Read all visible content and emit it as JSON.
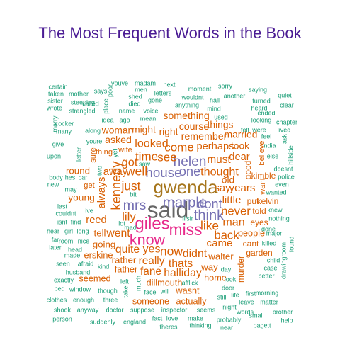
{
  "chart_data": {
    "type": "wordcloud",
    "title": "The Most Frequent Words in the Book",
    "colors": {
      "title": "#4b1c94",
      "tiers": [
        "#1b9e77",
        "#d95f02",
        "#7570b3",
        "#e7298a",
        "#a6761d",
        "#666666"
      ]
    },
    "words": [
      {
        "text": "said",
        "freq": 100
      },
      {
        "text": "gwenda",
        "freq": 72
      },
      {
        "text": "giles",
        "freq": 60
      },
      {
        "text": "miss",
        "freq": 52
      },
      {
        "text": "know",
        "freq": 45
      },
      {
        "text": "marple",
        "freq": 40
      },
      {
        "text": "think",
        "freq": 38
      },
      {
        "text": "mrs",
        "freq": 36
      },
      {
        "text": "helen",
        "freq": 33
      },
      {
        "text": "house",
        "freq": 32
      },
      {
        "text": "kennedy",
        "freq": 30
      },
      {
        "text": "one",
        "freq": 30
      },
      {
        "text": "dont",
        "freq": 29
      },
      {
        "text": "well",
        "freq": 27
      },
      {
        "text": "now",
        "freq": 27
      },
      {
        "text": "like",
        "freq": 26
      },
      {
        "text": "just",
        "freq": 26
      },
      {
        "text": "lily",
        "freq": 25
      },
      {
        "text": "see",
        "freq": 25
      },
      {
        "text": "time",
        "freq": 25
      },
      {
        "text": "come",
        "freq": 25
      },
      {
        "text": "back",
        "freq": 24
      },
      {
        "text": "never",
        "freq": 24
      },
      {
        "text": "got",
        "freq": 23
      },
      {
        "text": "looked",
        "freq": 22
      },
      {
        "text": "thought",
        "freq": 22
      },
      {
        "text": "man",
        "freq": 22
      },
      {
        "text": "yes",
        "freq": 22
      },
      {
        "text": "halliday",
        "freq": 21
      },
      {
        "text": "quite",
        "freq": 21
      },
      {
        "text": "thats",
        "freq": 21
      },
      {
        "text": "didnt",
        "freq": 21
      },
      {
        "text": "went",
        "freq": 21
      },
      {
        "text": "fane",
        "freq": 20
      },
      {
        "text": "really",
        "freq": 20
      },
      {
        "text": "must",
        "freq": 20
      },
      {
        "text": "little",
        "freq": 19
      },
      {
        "text": "years",
        "freq": 19
      },
      {
        "text": "came",
        "freq": 19
      },
      {
        "text": "perhaps",
        "freq": 18
      },
      {
        "text": "reed",
        "freq": 18
      },
      {
        "text": "always",
        "freq": 18
      },
      {
        "text": "dear",
        "freq": 18
      },
      {
        "text": "say",
        "freq": 18
      },
      {
        "text": "away",
        "freq": 18
      },
      {
        "text": "something",
        "freq": 17
      },
      {
        "text": "course",
        "freq": 17
      },
      {
        "text": "remember",
        "freq": 17
      },
      {
        "text": "asked",
        "freq": 17
      },
      {
        "text": "woman",
        "freq": 16
      },
      {
        "text": "might",
        "freq": 16
      },
      {
        "text": "right",
        "freq": 16
      },
      {
        "text": "things",
        "freq": 16
      },
      {
        "text": "married",
        "freq": 16
      },
      {
        "text": "took",
        "freq": 16
      },
      {
        "text": "old",
        "freq": 16
      },
      {
        "text": "young",
        "freq": 16
      },
      {
        "text": "round",
        "freq": 15
      },
      {
        "text": "tell",
        "freq": 15
      },
      {
        "text": "going",
        "freq": 15
      },
      {
        "text": "rather",
        "freq": 15
      },
      {
        "text": "way",
        "freq": 15
      },
      {
        "text": "walter",
        "freq": 15
      },
      {
        "text": "people",
        "freq": 14
      },
      {
        "text": "erskine",
        "freq": 14
      },
      {
        "text": "father",
        "freq": 14
      },
      {
        "text": "seemed",
        "freq": 14
      },
      {
        "text": "dillmouth",
        "freq": 14
      },
      {
        "text": "someone",
        "freq": 14
      },
      {
        "text": "actually",
        "freq": 14
      },
      {
        "text": "wasnt",
        "freq": 14
      },
      {
        "text": "home",
        "freq": 14
      },
      {
        "text": "put",
        "freq": 13
      },
      {
        "text": "kelvin",
        "freq": 13
      },
      {
        "text": "told",
        "freq": 13
      },
      {
        "text": "eyes",
        "freq": 13
      },
      {
        "text": "cant",
        "freq": 13
      },
      {
        "text": "garden",
        "freq": 13
      },
      {
        "text": "murder",
        "freq": 13
      },
      {
        "text": "kimble",
        "freq": 13
      },
      {
        "text": "good",
        "freq": 13
      },
      {
        "text": "believe",
        "freq": 12
      },
      {
        "text": "want",
        "freq": 12
      },
      {
        "text": "get",
        "freq": 12
      },
      {
        "text": "thing",
        "freq": 12
      },
      {
        "text": "wife",
        "freq": 12
      },
      {
        "text": "sure",
        "freq": 12
      },
      {
        "text": "shook",
        "freq": 11
      },
      {
        "text": "anyway",
        "freq": 11
      },
      {
        "text": "doctor",
        "freq": 11
      },
      {
        "text": "suppose",
        "freq": 11
      },
      {
        "text": "inspector",
        "freq": 11
      },
      {
        "text": "seems",
        "freq": 11
      },
      {
        "text": "words",
        "freq": 11
      },
      {
        "text": "brother",
        "freq": 11
      },
      {
        "text": "person",
        "freq": 11
      },
      {
        "text": "suddenly",
        "freq": 11
      },
      {
        "text": "england",
        "freq": 11
      },
      {
        "text": "fact",
        "freq": 11
      },
      {
        "text": "love",
        "freq": 11
      },
      {
        "text": "theres",
        "freq": 11
      },
      {
        "text": "thinking",
        "freq": 11
      },
      {
        "text": "near",
        "freq": 11
      },
      {
        "text": "probably",
        "freq": 11
      },
      {
        "text": "small",
        "freq": 11
      },
      {
        "text": "pagett",
        "freq": 11
      },
      {
        "text": "help",
        "freq": 11
      },
      {
        "text": "make",
        "freq": 11
      },
      {
        "text": "night",
        "freq": 11
      },
      {
        "text": "still",
        "freq": 11
      },
      {
        "text": "life",
        "freq": 11
      },
      {
        "text": "leave",
        "freq": 11
      },
      {
        "text": "matter",
        "freq": 11
      },
      {
        "text": "morning",
        "freq": 11
      },
      {
        "text": "clothes",
        "freq": 11
      },
      {
        "text": "enough",
        "freq": 11
      },
      {
        "text": "three",
        "freq": 11
      },
      {
        "text": "bed",
        "freq": 11
      },
      {
        "text": "window",
        "freq": 11
      },
      {
        "text": "though",
        "freq": 11
      },
      {
        "text": "face",
        "freq": 11
      },
      {
        "text": "will",
        "freq": 11
      },
      {
        "text": "door",
        "freq": 11
      },
      {
        "text": "look",
        "freq": 11
      },
      {
        "text": "exactly",
        "freq": 11
      },
      {
        "text": "seen",
        "freq": 11
      },
      {
        "text": "afraid",
        "freq": 11
      },
      {
        "text": "husband",
        "freq": 11
      },
      {
        "text": "made",
        "freq": 11
      },
      {
        "text": "kind",
        "freq": 11
      },
      {
        "text": "left",
        "freq": 11
      },
      {
        "text": "afflick",
        "freq": 11
      },
      {
        "text": "day",
        "freq": 11
      },
      {
        "text": "first",
        "freq": 11
      },
      {
        "text": "drawingroom",
        "freq": 11
      },
      {
        "text": "better",
        "freq": 11
      },
      {
        "text": "case",
        "freq": 11
      },
      {
        "text": "child",
        "freq": 11
      },
      {
        "text": "killed",
        "freq": 11
      },
      {
        "text": "major",
        "freq": 11
      },
      {
        "text": "done",
        "freq": 11
      },
      {
        "text": "found",
        "freq": 11
      },
      {
        "text": "nothing",
        "freq": 11
      },
      {
        "text": "knew",
        "freq": 11
      },
      {
        "text": "wanted",
        "freq": 11
      },
      {
        "text": "even",
        "freq": 11
      },
      {
        "text": "police",
        "freq": 11
      },
      {
        "text": "doesnt",
        "freq": 11
      },
      {
        "text": "else",
        "freq": 11
      },
      {
        "text": "hillside",
        "freq": 11
      },
      {
        "text": "india",
        "freq": 11
      },
      {
        "text": "feel",
        "freq": 11
      },
      {
        "text": "lived",
        "freq": 11
      },
      {
        "text": "ask",
        "freq": 11
      },
      {
        "text": "chapter",
        "freq": 11
      },
      {
        "text": "looking",
        "freq": 11
      },
      {
        "text": "ended",
        "freq": 11
      },
      {
        "text": "clear",
        "freq": 11
      },
      {
        "text": "turned",
        "freq": 11
      },
      {
        "text": "quiet",
        "freq": 11
      },
      {
        "text": "saying",
        "freq": 11
      },
      {
        "text": "heard",
        "freq": 11
      },
      {
        "text": "another",
        "freq": 11
      },
      {
        "text": "sorry",
        "freq": 11
      },
      {
        "text": "hall",
        "freq": 11
      },
      {
        "text": "moment",
        "freq": 11
      },
      {
        "text": "wouldnt",
        "freq": 11
      },
      {
        "text": "next",
        "freq": 11
      },
      {
        "text": "letters",
        "freq": 11
      },
      {
        "text": "gone",
        "freq": 11
      },
      {
        "text": "madam",
        "freq": 11
      },
      {
        "text": "men",
        "freq": 11
      },
      {
        "text": "shed",
        "freq": 11
      },
      {
        "text": "died",
        "freq": 11
      },
      {
        "text": "youve",
        "freq": 11
      },
      {
        "text": "says",
        "freq": 11
      },
      {
        "text": "poor",
        "freq": 11
      },
      {
        "text": "place",
        "freq": 11
      },
      {
        "text": "called",
        "freq": 11
      },
      {
        "text": "name",
        "freq": 11
      },
      {
        "text": "voice",
        "freq": 11
      },
      {
        "text": "mean",
        "freq": 11
      },
      {
        "text": "ago",
        "freq": 11
      },
      {
        "text": "idea",
        "freq": 11
      },
      {
        "text": "anything",
        "freq": 11
      },
      {
        "text": "mind",
        "freq": 11
      },
      {
        "text": "used",
        "freq": 11
      },
      {
        "text": "felt",
        "freq": 11
      },
      {
        "text": "were",
        "freq": 11
      },
      {
        "text": "certain",
        "freq": 11
      },
      {
        "text": "taken",
        "freq": 11
      },
      {
        "text": "mother",
        "freq": 11
      },
      {
        "text": "sister",
        "freq": 11
      },
      {
        "text": "steeping",
        "freq": 11
      },
      {
        "text": "wrote",
        "freq": 11
      },
      {
        "text": "strangled",
        "freq": 11
      },
      {
        "text": "marry",
        "freq": 11
      },
      {
        "text": "cocker",
        "freq": 11
      },
      {
        "text": "many",
        "freq": 11
      },
      {
        "text": "along",
        "freq": 11
      },
      {
        "text": "give",
        "freq": 11
      },
      {
        "text": "upon",
        "freq": 11
      },
      {
        "text": "youre",
        "freq": 11
      },
      {
        "text": "letter",
        "freq": 11
      },
      {
        "text": "body",
        "freq": 11
      },
      {
        "text": "hes",
        "freq": 11
      },
      {
        "text": "car",
        "freq": 11
      },
      {
        "text": "new",
        "freq": 11
      },
      {
        "text": "may",
        "freq": 11
      },
      {
        "text": "last",
        "freq": 11
      },
      {
        "text": "couldnt",
        "freq": 11
      },
      {
        "text": "isnt",
        "freq": 11
      },
      {
        "text": "hear",
        "freq": 11
      },
      {
        "text": "girl",
        "freq": 11
      },
      {
        "text": "long",
        "freq": 11
      },
      {
        "text": "far",
        "freq": 11
      },
      {
        "text": "room",
        "freq": 11
      },
      {
        "text": "later",
        "freq": 11
      },
      {
        "text": "head",
        "freq": 11
      },
      {
        "text": "nice",
        "freq": 11
      },
      {
        "text": "ive",
        "freq": 11
      },
      {
        "text": "find",
        "freq": 11
      },
      {
        "text": "lot",
        "freq": 11
      },
      {
        "text": "mad",
        "freq": 11
      },
      {
        "text": "bit",
        "freq": 11
      },
      {
        "text": "saw",
        "freq": 11
      },
      {
        "text": "two",
        "freq": 11
      },
      {
        "text": "illsir",
        "freq": 11
      },
      {
        "text": "much",
        "freq": 11
      },
      {
        "text": "take",
        "freq": 11
      },
      {
        "text": "yet",
        "freq": 11
      }
    ]
  }
}
